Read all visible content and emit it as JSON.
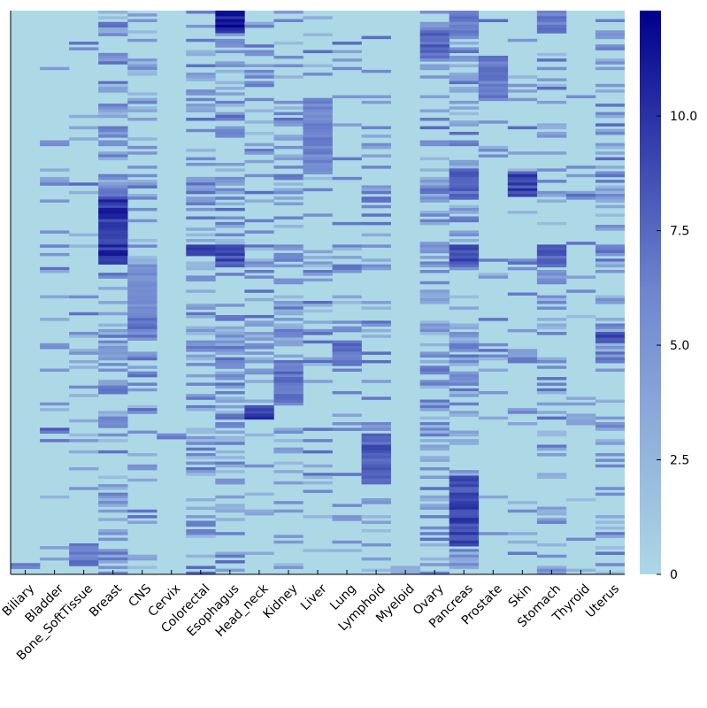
{
  "chart_data": {
    "type": "heatmap",
    "title": "",
    "xlabel": "",
    "ylabel": "",
    "categories": [
      "Biliary",
      "Bladder",
      "Bone_SoftTissue",
      "Breast",
      "CNS",
      "Cervix",
      "Colorectal",
      "Esophagus",
      "Head_neck",
      "Kidney",
      "Liver",
      "Lung",
      "Lymphoid",
      "Myeloid",
      "Ovary",
      "Pancreas",
      "Prostate",
      "Skin",
      "Stomach",
      "Thyroid",
      "Uterus"
    ],
    "row_count": 200,
    "colorbar": {
      "range": [
        0,
        12.3
      ],
      "ticks": [
        0,
        2.5,
        5.0,
        7.5,
        10.0
      ],
      "tick_labels": [
        "0",
        "2.5",
        "5.0",
        "7.5",
        "10.0"
      ],
      "color_low": "#add8e6",
      "color_mid": "#4a5fc1",
      "color_high": "#00008b"
    },
    "background_color": "#add8e6",
    "blocks": [
      {
        "category": "Biliary",
        "rows": [
          196,
          197
        ],
        "value": 6.0
      },
      {
        "category": "Bladder",
        "rows": [
          148,
          149
        ],
        "value": 7.5
      },
      {
        "category": "Bone_SoftTissue",
        "rows": [
          189,
          196
        ],
        "value": 6.5
      },
      {
        "category": "Breast",
        "rows": [
          66,
          89
        ],
        "value": 10.0
      },
      {
        "category": "CNS",
        "rows": [
          90,
          108
        ],
        "value": 5.5
      },
      {
        "category": "CNS",
        "rows": [
          109,
          113
        ],
        "value": 7.0
      },
      {
        "category": "Cervix",
        "rows": [
          150,
          151
        ],
        "value": 6.0
      },
      {
        "category": "Colorectal",
        "rows": [
          83,
          86
        ],
        "value": 9.5
      },
      {
        "category": "Esophagus",
        "rows": [
          0,
          7
        ],
        "value": 11.0
      },
      {
        "category": "Esophagus",
        "rows": [
          83,
          90
        ],
        "value": 8.5
      },
      {
        "category": "Head_neck",
        "rows": [
          140,
          144
        ],
        "value": 9.5
      },
      {
        "category": "Kidney",
        "rows": [
          124,
          138
        ],
        "value": 7.0
      },
      {
        "category": "Liver",
        "rows": [
          31,
          57
        ],
        "value": 6.0
      },
      {
        "category": "Lung",
        "rows": [
          118,
          124
        ],
        "value": 7.0
      },
      {
        "category": "Lymphoid",
        "rows": [
          150,
          167
        ],
        "value": 8.0
      },
      {
        "category": "Myeloid",
        "rows": [
          197,
          199
        ],
        "value": 3.5
      },
      {
        "category": "Ovary",
        "rows": [
          7,
          15
        ],
        "value": 7.5
      },
      {
        "category": "Pancreas",
        "rows": [
          165,
          189
        ],
        "value": 9.0
      },
      {
        "category": "Pancreas",
        "rows": [
          0,
          8
        ],
        "value": 6.5
      },
      {
        "category": "Pancreas",
        "rows": [
          56,
          66
        ],
        "value": 7.5
      },
      {
        "category": "Pancreas",
        "rows": [
          83,
          90
        ],
        "value": 8.5
      },
      {
        "category": "Prostate",
        "rows": [
          16,
          31
        ],
        "value": 6.5
      },
      {
        "category": "Skin",
        "rows": [
          57,
          65
        ],
        "value": 9.0
      },
      {
        "category": "Stomach",
        "rows": [
          0,
          7
        ],
        "value": 6.5
      },
      {
        "category": "Stomach",
        "rows": [
          83,
          90
        ],
        "value": 8.0
      },
      {
        "category": "Thyroid",
        "rows": [
          143,
          146
        ],
        "value": 4.0
      },
      {
        "category": "Uterus",
        "rows": [
          114,
          117
        ],
        "value": 9.0
      }
    ],
    "noise_columns": [
      {
        "category": "Bladder",
        "density": 0.12
      },
      {
        "category": "Bone_SoftTissue",
        "density": 0.1
      },
      {
        "category": "Breast",
        "density": 0.45
      },
      {
        "category": "CNS",
        "density": 0.28
      },
      {
        "category": "Colorectal",
        "density": 0.32
      },
      {
        "category": "Esophagus",
        "density": 0.38
      },
      {
        "category": "Head_neck",
        "density": 0.22
      },
      {
        "category": "Kidney",
        "density": 0.3
      },
      {
        "category": "Liver",
        "density": 0.15
      },
      {
        "category": "Lung",
        "density": 0.18
      },
      {
        "category": "Lymphoid",
        "density": 0.2
      },
      {
        "category": "Ovary",
        "density": 0.38
      },
      {
        "category": "Pancreas",
        "density": 0.45
      },
      {
        "category": "Prostate",
        "density": 0.1
      },
      {
        "category": "Skin",
        "density": 0.1
      },
      {
        "category": "Stomach",
        "density": 0.25
      },
      {
        "category": "Thyroid",
        "density": 0.05
      },
      {
        "category": "Uterus",
        "density": 0.32
      }
    ],
    "bands": [
      {
        "rows": [
          59,
          66
        ],
        "value": 4.5
      },
      {
        "rows": [
          83,
          90
        ],
        "value": 4.5
      },
      {
        "rows": [
          111,
          124
        ],
        "value": 3.5
      }
    ]
  }
}
